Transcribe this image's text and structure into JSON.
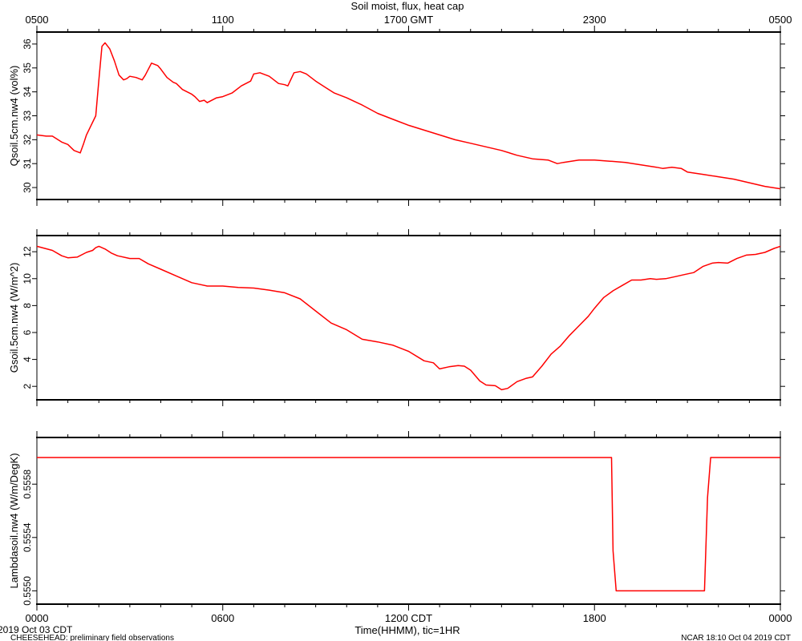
{
  "chart_data": {
    "title": "Soil moist, flux, heat cap",
    "top_axis_ticks": [
      "0500",
      "1100",
      "1700 GMT",
      "2300",
      "0500"
    ],
    "bottom_axis_ticks": [
      "0000",
      "0600",
      "1200 CDT",
      "1800",
      "0000"
    ],
    "xlabel": "Time(HHMM), tic=1HR",
    "x_range_hours": [
      0,
      24
    ],
    "footer": {
      "date": "2019 Oct 03 CDT",
      "project": "CHEESEHEAD: preliminary field observations",
      "credit": "NCAR 18:10 Oct 04 2019 CDT"
    },
    "panels": [
      {
        "type": "line",
        "ylabel": "Qsoil.5cm.nw4 (vol%)",
        "ylim": [
          29.5,
          36.5
        ],
        "yticks": [
          30,
          31,
          32,
          33,
          34,
          35,
          36
        ],
        "ytick_labels": [
          "30",
          "31",
          "32",
          "33",
          "34",
          "35",
          "36"
        ],
        "color": "#ff0000",
        "x": [
          0,
          0.3,
          0.5,
          0.8,
          1.0,
          1.2,
          1.4,
          1.5,
          1.6,
          1.9,
          2.0,
          2.1,
          2.2,
          2.35,
          2.5,
          2.65,
          2.8,
          2.9,
          3.0,
          3.2,
          3.4,
          3.5,
          3.7,
          3.9,
          4.0,
          4.2,
          4.4,
          4.5,
          4.7,
          5.0,
          5.1,
          5.25,
          5.4,
          5.5,
          5.8,
          6.0,
          6.3,
          6.6,
          6.9,
          7.0,
          7.2,
          7.5,
          7.8,
          8.0,
          8.1,
          8.3,
          8.5,
          8.7,
          9.0,
          9.3,
          9.6,
          10.0,
          10.5,
          11.0,
          11.5,
          12.0,
          12.5,
          13.0,
          13.5,
          14.0,
          14.5,
          15.0,
          15.5,
          16.0,
          16.5,
          16.8,
          17.0,
          17.5,
          18.0,
          18.5,
          19.0,
          19.5,
          20.0,
          20.2,
          20.5,
          20.8,
          21.0,
          21.5,
          22.0,
          22.5,
          23.0,
          23.5,
          24.0
        ],
        "values": [
          32.2,
          32.15,
          32.15,
          31.9,
          31.8,
          31.55,
          31.45,
          31.8,
          32.2,
          33.0,
          34.5,
          35.9,
          36.05,
          35.8,
          35.3,
          34.7,
          34.5,
          34.55,
          34.65,
          34.6,
          34.5,
          34.7,
          35.2,
          35.1,
          34.95,
          34.6,
          34.4,
          34.35,
          34.1,
          33.9,
          33.8,
          33.6,
          33.65,
          33.55,
          33.75,
          33.8,
          33.95,
          34.25,
          34.45,
          34.75,
          34.8,
          34.65,
          34.35,
          34.3,
          34.25,
          34.8,
          34.85,
          34.75,
          34.45,
          34.2,
          33.95,
          33.75,
          33.45,
          33.1,
          32.85,
          32.6,
          32.4,
          32.2,
          32.0,
          31.85,
          31.7,
          31.55,
          31.35,
          31.2,
          31.15,
          31.0,
          31.05,
          31.15,
          31.15,
          31.1,
          31.05,
          30.95,
          30.85,
          30.8,
          30.85,
          30.8,
          30.65,
          30.55,
          30.45,
          30.35,
          30.2,
          30.05,
          29.95
        ]
      },
      {
        "type": "line",
        "ylabel": "Gsoil.5cm.nw4 (W/m^2)",
        "ylim": [
          1,
          13.2
        ],
        "yticks": [
          2,
          4,
          6,
          8,
          10,
          12
        ],
        "ytick_labels": [
          "2",
          "4",
          "6",
          "8",
          "10",
          "12"
        ],
        "color": "#ff0000",
        "x": [
          0,
          0.5,
          0.8,
          1.0,
          1.3,
          1.6,
          1.8,
          1.9,
          2.0,
          2.2,
          2.4,
          2.6,
          3.0,
          3.3,
          3.6,
          4.0,
          4.5,
          5.0,
          5.5,
          6.0,
          6.5,
          7.0,
          7.5,
          8.0,
          8.5,
          9.0,
          9.5,
          10.0,
          10.5,
          11.0,
          11.5,
          12.0,
          12.5,
          12.8,
          13.0,
          13.3,
          13.6,
          13.8,
          14.0,
          14.3,
          14.5,
          14.8,
          15.0,
          15.2,
          15.5,
          15.8,
          16.0,
          16.3,
          16.6,
          16.9,
          17.2,
          17.5,
          17.8,
          18.0,
          18.3,
          18.6,
          18.9,
          19.2,
          19.5,
          19.8,
          20.0,
          20.3,
          20.6,
          20.9,
          21.2,
          21.5,
          21.8,
          22.0,
          22.3,
          22.6,
          22.9,
          23.2,
          23.5,
          23.8,
          24.0
        ],
        "values": [
          12.4,
          12.1,
          11.7,
          11.55,
          11.6,
          11.95,
          12.1,
          12.3,
          12.4,
          12.2,
          11.9,
          11.7,
          11.5,
          11.5,
          11.1,
          10.7,
          10.2,
          9.7,
          9.45,
          9.45,
          9.35,
          9.3,
          9.15,
          8.95,
          8.5,
          7.6,
          6.7,
          6.2,
          5.5,
          5.3,
          5.05,
          4.6,
          3.9,
          3.75,
          3.3,
          3.45,
          3.55,
          3.5,
          3.2,
          2.4,
          2.1,
          2.05,
          1.75,
          1.85,
          2.35,
          2.6,
          2.7,
          3.5,
          4.4,
          5.0,
          5.8,
          6.5,
          7.2,
          7.8,
          8.6,
          9.1,
          9.5,
          9.9,
          9.9,
          10.0,
          9.95,
          10.0,
          10.15,
          10.3,
          10.45,
          10.9,
          11.15,
          11.2,
          11.15,
          11.5,
          11.75,
          11.8,
          11.95,
          12.25,
          12.4
        ]
      },
      {
        "type": "line",
        "ylabel": "Lambdasoil.nw4 (W/m/DegK)",
        "ylim": [
          0.5549,
          0.55615
        ],
        "yticks": [
          0.555,
          0.5554,
          0.5558
        ],
        "ytick_labels": [
          "0.5550",
          "0.5554",
          "0.5558"
        ],
        "color": "#ff0000",
        "x": [
          0,
          18.55,
          18.6,
          18.7,
          21.55,
          21.65,
          21.75,
          24.0
        ],
        "values": [
          0.556,
          0.556,
          0.5553,
          0.555,
          0.555,
          0.5557,
          0.556,
          0.556
        ]
      }
    ]
  }
}
